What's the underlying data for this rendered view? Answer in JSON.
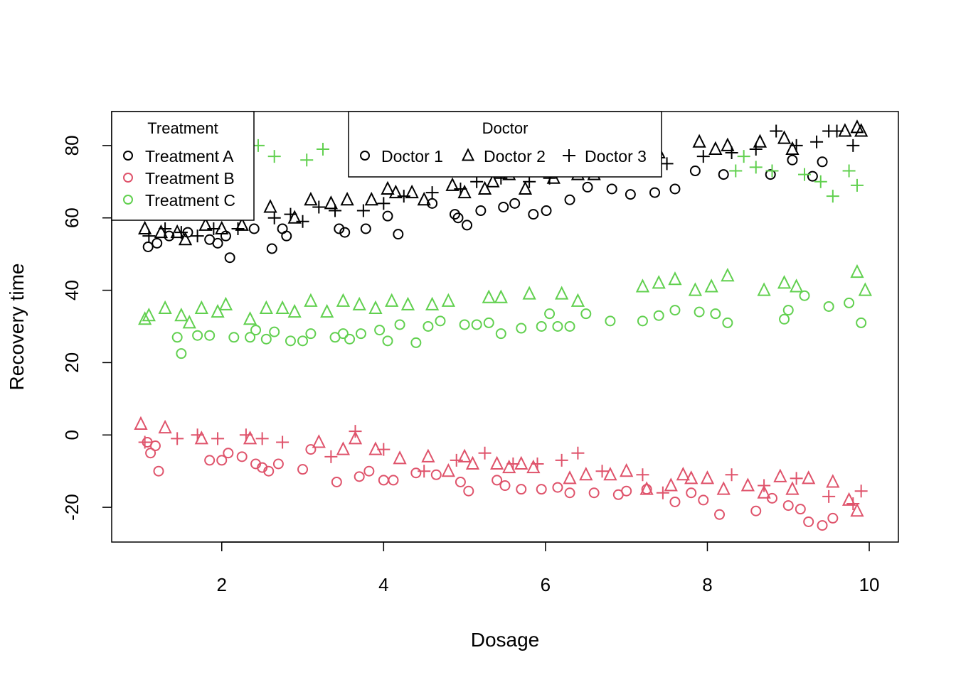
{
  "chart_data": {
    "type": "scatter",
    "title": "",
    "xlabel": "Dosage",
    "ylabel": "Recovery time",
    "xlim": [
      0.64,
      10.36
    ],
    "ylim": [
      -29.6,
      89.4
    ],
    "x_ticks": [
      "2",
      "4",
      "6",
      "8",
      "10"
    ],
    "y_ticks": [
      "-20",
      "0",
      "20",
      "40",
      "60",
      "80"
    ],
    "grid": false,
    "colors": {
      "Treatment A": "#000000",
      "Treatment B": "#DF536B",
      "Treatment C": "#61D04F"
    },
    "legend_treatment": {
      "title": "Treatment",
      "placement": "top-left",
      "entries": [
        "Treatment A",
        "Treatment B",
        "Treatment C"
      ]
    },
    "legend_doctor": {
      "title": "Doctor",
      "placement": "top-center",
      "entries": [
        "Doctor 1",
        "Doctor 2",
        "Doctor 3"
      ],
      "shapes": [
        "circle",
        "triangle",
        "plus"
      ]
    },
    "series": [
      {
        "treatment": "Treatment A",
        "doctor": "Doctor 1",
        "shape": "circle",
        "color": "#000000",
        "x": [
          1.09,
          1.2,
          1.35,
          1.58,
          1.85,
          1.95,
          2.05,
          2.1,
          2.4,
          2.62,
          2.75,
          2.8,
          3.45,
          3.52,
          3.78,
          4.05,
          4.18,
          4.6,
          4.88,
          4.92,
          5.03,
          5.2,
          5.48,
          5.62,
          5.85,
          6.01,
          6.3,
          6.52,
          6.82,
          7.05,
          7.35,
          7.6,
          7.85,
          8.2,
          8.78,
          9.05,
          9.3,
          9.42
        ],
        "y": [
          52,
          53,
          55,
          56,
          54,
          53,
          55,
          49,
          57,
          51.5,
          57,
          55,
          57,
          56,
          57,
          60.5,
          55.5,
          64,
          61,
          60,
          58,
          62,
          63,
          64,
          61,
          62,
          65,
          68.5,
          68,
          66.5,
          67,
          68,
          73,
          72,
          72,
          76,
          71.5,
          75.5
        ]
      },
      {
        "treatment": "Treatment A",
        "doctor": "Doctor 2",
        "shape": "triangle",
        "color": "#000000",
        "x": [
          1.05,
          1.25,
          1.45,
          1.55,
          1.8,
          2.0,
          2.25,
          2.6,
          2.9,
          3.1,
          3.35,
          3.55,
          3.85,
          4.05,
          4.15,
          4.35,
          4.5,
          4.85,
          5.0,
          5.25,
          5.35,
          5.55,
          5.75,
          6.1,
          6.4,
          6.6,
          6.85,
          7.1,
          7.4,
          7.9,
          8.1,
          8.25,
          8.65,
          8.95,
          9.05,
          9.7,
          9.85,
          9.9
        ],
        "y": [
          57,
          56,
          56,
          54,
          58,
          57,
          58,
          63,
          60,
          65,
          64,
          65,
          65,
          68,
          67,
          67,
          65,
          69,
          67,
          68,
          70,
          72,
          68,
          71,
          72,
          72,
          74,
          75,
          78,
          81,
          79,
          80,
          81,
          82,
          79,
          84,
          85,
          84
        ]
      },
      {
        "treatment": "Treatment A",
        "doctor": "Doctor 3",
        "shape": "plus",
        "color": "#000000",
        "x": [
          1.1,
          1.3,
          1.5,
          1.7,
          1.9,
          2.2,
          2.65,
          2.85,
          3.0,
          3.2,
          3.4,
          3.75,
          4.0,
          4.25,
          4.6,
          4.95,
          5.15,
          5.45,
          5.8,
          6.05,
          6.35,
          6.7,
          6.95,
          7.25,
          7.5,
          7.95,
          8.3,
          8.6,
          8.85,
          9.1,
          9.35,
          9.5,
          9.6,
          9.8
        ],
        "y": [
          55,
          57,
          56,
          55,
          57,
          57,
          60,
          61,
          59,
          63,
          62,
          62,
          64,
          66,
          67,
          68,
          70,
          71,
          70,
          71,
          73,
          73,
          74,
          75,
          75,
          77,
          78,
          79,
          84,
          80,
          81,
          84,
          84,
          80
        ]
      },
      {
        "treatment": "Treatment B",
        "doctor": "Doctor 1",
        "shape": "circle",
        "color": "#DF536B",
        "x": [
          1.08,
          1.12,
          1.18,
          1.22,
          1.85,
          2.0,
          2.08,
          2.25,
          2.42,
          2.5,
          2.58,
          2.7,
          3.0,
          3.1,
          3.42,
          3.7,
          3.82,
          4.0,
          4.12,
          4.4,
          4.65,
          4.95,
          5.05,
          5.4,
          5.5,
          5.7,
          5.95,
          6.15,
          6.3,
          6.6,
          6.9,
          7.0,
          7.25,
          7.6,
          7.8,
          7.95,
          8.15,
          8.6,
          8.8,
          9.0,
          9.15,
          9.25,
          9.42,
          9.55
        ],
        "y": [
          -2,
          -5,
          -3,
          -10,
          -7,
          -7,
          -5,
          -6,
          -8,
          -9,
          -10,
          -8,
          -9.5,
          -4,
          -13,
          -11.5,
          -10,
          -12.5,
          -12.5,
          -10.5,
          -11,
          -13,
          -15.5,
          -12.5,
          -14,
          -15,
          -15,
          -14.5,
          -16,
          -16,
          -16.5,
          -15.5,
          -15,
          -18.5,
          -16,
          -18,
          -22,
          -21,
          -17.5,
          -19.5,
          -20.5,
          -24,
          -25,
          -23
        ]
      },
      {
        "treatment": "Treatment B",
        "doctor": "Doctor 2",
        "shape": "triangle",
        "color": "#DF536B",
        "x": [
          1.0,
          1.3,
          1.75,
          2.35,
          3.2,
          3.5,
          3.65,
          3.9,
          4.2,
          4.55,
          4.8,
          5.0,
          5.1,
          5.4,
          5.55,
          5.7,
          5.85,
          6.3,
          6.5,
          6.8,
          7.0,
          7.25,
          7.55,
          7.7,
          7.8,
          8.0,
          8.2,
          8.5,
          8.7,
          8.9,
          9.05,
          9.25,
          9.55,
          9.75,
          9.85
        ],
        "y": [
          3,
          2,
          -1,
          -1,
          -2,
          -4,
          -1,
          -4,
          -6.5,
          -6,
          -10,
          -6,
          -8,
          -8,
          -9,
          -8,
          -9,
          -12,
          -11,
          -11,
          -10,
          -15,
          -14,
          -11,
          -12,
          -12,
          -15,
          -14,
          -16,
          -11.5,
          -15,
          -12,
          -13,
          -18,
          -21
        ]
      },
      {
        "treatment": "Treatment B",
        "doctor": "Doctor 3",
        "shape": "plus",
        "color": "#DF536B",
        "x": [
          1.05,
          1.45,
          1.7,
          1.95,
          2.3,
          2.5,
          2.75,
          3.35,
          3.65,
          4.0,
          4.5,
          4.9,
          5.25,
          5.6,
          5.9,
          6.2,
          6.4,
          6.7,
          7.2,
          7.45,
          8.3,
          8.7,
          9.1,
          9.5,
          9.8,
          9.9
        ],
        "y": [
          -2,
          -1,
          0,
          -1,
          0,
          -1,
          -2,
          -6,
          1,
          -4,
          -10,
          -7,
          -5,
          -8,
          -8,
          -7,
          -5,
          -10,
          -11,
          -16,
          -11,
          -14,
          -12,
          -17,
          -19,
          -15.5
        ]
      },
      {
        "treatment": "Treatment C",
        "doctor": "Doctor 1",
        "shape": "circle",
        "color": "#61D04F",
        "x": [
          1.45,
          1.5,
          1.7,
          1.85,
          2.15,
          2.35,
          2.42,
          2.55,
          2.65,
          2.85,
          3.0,
          3.1,
          3.4,
          3.5,
          3.58,
          3.72,
          3.95,
          4.05,
          4.2,
          4.4,
          4.55,
          4.7,
          5.0,
          5.15,
          5.3,
          5.45,
          5.7,
          5.95,
          6.05,
          6.15,
          6.3,
          6.5,
          6.8,
          7.2,
          7.4,
          7.6,
          7.9,
          8.1,
          8.25,
          8.95,
          9.0,
          9.2,
          9.5,
          9.75,
          9.9
        ],
        "y": [
          27,
          22.5,
          27.5,
          27.5,
          27,
          27,
          29,
          26.5,
          28.5,
          26,
          26,
          28,
          27,
          28,
          26.5,
          28,
          29,
          26,
          30.5,
          25.5,
          30,
          31.5,
          30.5,
          30.5,
          31,
          28,
          29.5,
          30,
          33.5,
          30,
          30,
          33.5,
          31.5,
          31.5,
          33,
          34.5,
          34,
          33.5,
          31,
          32,
          34.5,
          38.5,
          35.5,
          36.5,
          31
        ]
      },
      {
        "treatment": "Treatment C",
        "doctor": "Doctor 2",
        "shape": "triangle",
        "color": "#61D04F",
        "x": [
          1.05,
          1.1,
          1.3,
          1.5,
          1.6,
          1.75,
          1.95,
          2.05,
          2.35,
          2.55,
          2.75,
          2.9,
          3.1,
          3.3,
          3.5,
          3.7,
          3.9,
          4.1,
          4.3,
          4.6,
          4.8,
          5.3,
          5.45,
          5.8,
          6.2,
          6.4,
          7.2,
          7.4,
          7.6,
          7.85,
          8.05,
          8.25,
          8.7,
          8.95,
          9.1,
          9.85,
          9.95
        ],
        "y": [
          32,
          33,
          35,
          33,
          31,
          35,
          34,
          36,
          32,
          35,
          35,
          34,
          37,
          34,
          37,
          36,
          35,
          37,
          36,
          36,
          37,
          38,
          38,
          39,
          39,
          37,
          41,
          42,
          43,
          40,
          41,
          44,
          40,
          42,
          41,
          45,
          40
        ]
      },
      {
        "treatment": "Treatment C",
        "doctor": "Doctor 3",
        "shape": "plus",
        "color": "#61D04F",
        "x": [
          2.45,
          2.65,
          3.05,
          3.25,
          3.7,
          8.35,
          8.45,
          8.6,
          8.8,
          9.2,
          9.4,
          9.55,
          9.75,
          9.85
        ],
        "y": [
          80,
          77,
          76,
          79,
          77,
          73,
          77,
          74,
          73,
          72,
          70,
          66,
          73,
          69
        ]
      }
    ]
  }
}
